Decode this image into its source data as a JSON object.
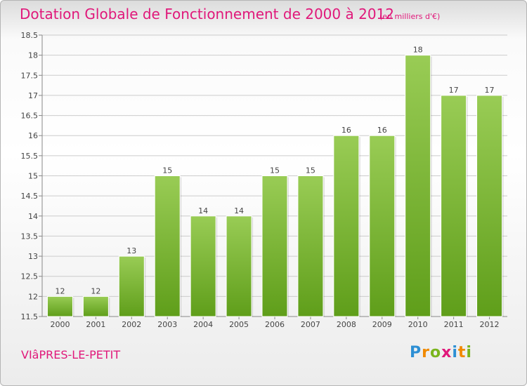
{
  "title": "Dotation Globale de Fonctionnement de 2000 à 2012",
  "subtitle": "(en milliers d'€)",
  "commune": "VIâPRES-LE-PETIT",
  "logo": {
    "letters": [
      "P",
      "r",
      "o",
      "x",
      "i",
      "t",
      "i"
    ],
    "colors": [
      "#2d8fd4",
      "#f18a00",
      "#7ab51d",
      "#e0187a",
      "#2d8fd4",
      "#f18a00",
      "#7ab51d"
    ]
  },
  "colors": {
    "bar_top": "#99cc55",
    "bar_bottom": "#5f9e1a",
    "text": "#e0187a",
    "grid": "#cccccc"
  },
  "chart_data": {
    "type": "bar",
    "title": "Dotation Globale de Fonctionnement de 2000 à 2012",
    "xlabel": "",
    "ylabel": "",
    "categories": [
      "2000",
      "2001",
      "2002",
      "2003",
      "2004",
      "2005",
      "2006",
      "2007",
      "2008",
      "2009",
      "2010",
      "2011",
      "2012"
    ],
    "values": [
      12,
      12,
      13,
      15,
      14,
      14,
      15,
      15,
      16,
      16,
      18,
      17,
      17
    ],
    "data_labels": [
      "12",
      "12",
      "13",
      "15",
      "14",
      "14",
      "15",
      "15",
      "16",
      "16",
      "18",
      "17",
      "17"
    ],
    "ylim": [
      11.5,
      18.5
    ],
    "yticks": [
      11.5,
      12,
      12.5,
      13,
      13.5,
      14,
      14.5,
      15,
      15.5,
      16,
      16.5,
      17,
      17.5,
      18,
      18.5
    ],
    "ytick_labels": [
      "11.5",
      "12",
      "12.5",
      "13",
      "13.5",
      "14",
      "14.5",
      "15",
      "15.5",
      "16",
      "16.5",
      "17",
      "17.5",
      "18",
      "18.5"
    ],
    "grid": true
  }
}
